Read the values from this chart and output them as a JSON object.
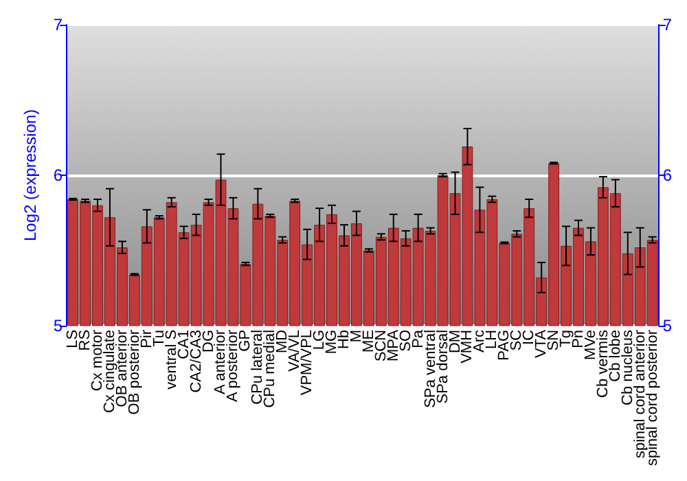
{
  "chart_data": {
    "type": "bar",
    "ylabel": "Log2 (expression)",
    "categories": [
      "LS",
      "RS",
      "Cx motor",
      "Cx cingulate",
      "OB anterior",
      "OB posterior",
      "Pir",
      "Tu",
      "ventral S",
      "CA1",
      "CA2/CA3",
      "DG",
      "A anterior",
      "A posterior",
      "GP",
      "CPu lateral",
      "CPu medial",
      "MD",
      "VA/VL",
      "VPM/VPL",
      "LG",
      "MG",
      "Hb",
      "M",
      "ME",
      "SCN",
      "MPA",
      "SO",
      "Pa",
      "SPa ventral",
      "SPa dorsal",
      "DM",
      "VMH",
      "Arc",
      "LH",
      "PAG",
      "SC",
      "IC",
      "VTA",
      "SN",
      "Tg",
      "Pn",
      "MVe",
      "Cb vermis",
      "Cb lobe",
      "Cb nucleus",
      "spinal cord anterior",
      "spinal cord posterior"
    ],
    "values": [
      5.84,
      5.83,
      5.8,
      5.72,
      5.52,
      5.34,
      5.66,
      5.72,
      5.82,
      5.62,
      5.67,
      5.82,
      5.97,
      5.78,
      5.41,
      5.81,
      5.73,
      5.57,
      5.83,
      5.54,
      5.67,
      5.74,
      5.6,
      5.68,
      5.5,
      5.59,
      5.65,
      5.58,
      5.65,
      5.63,
      6.0,
      5.88,
      6.19,
      5.77,
      5.84,
      5.55,
      5.61,
      5.78,
      5.32,
      6.08,
      5.53,
      5.65,
      5.56,
      5.92,
      5.88,
      5.48,
      5.52,
      5.57
    ],
    "errors": [
      0.005,
      0.01,
      0.04,
      0.19,
      0.04,
      0.005,
      0.11,
      0.01,
      0.03,
      0.04,
      0.07,
      0.02,
      0.17,
      0.07,
      0.01,
      0.1,
      0.01,
      0.02,
      0.01,
      0.1,
      0.11,
      0.06,
      0.07,
      0.08,
      0.01,
      0.02,
      0.09,
      0.05,
      0.09,
      0.02,
      0.01,
      0.14,
      0.12,
      0.15,
      0.02,
      0.005,
      0.02,
      0.06,
      0.1,
      0.005,
      0.13,
      0.05,
      0.09,
      0.07,
      0.09,
      0.14,
      0.13,
      0.02
    ],
    "color": "#c0393b",
    "ylim": [
      5,
      7
    ],
    "yticks": [
      5,
      6,
      7
    ],
    "y2lim": [
      5,
      7
    ],
    "y2ticks": [
      5,
      6,
      7
    ],
    "grid": "y"
  }
}
